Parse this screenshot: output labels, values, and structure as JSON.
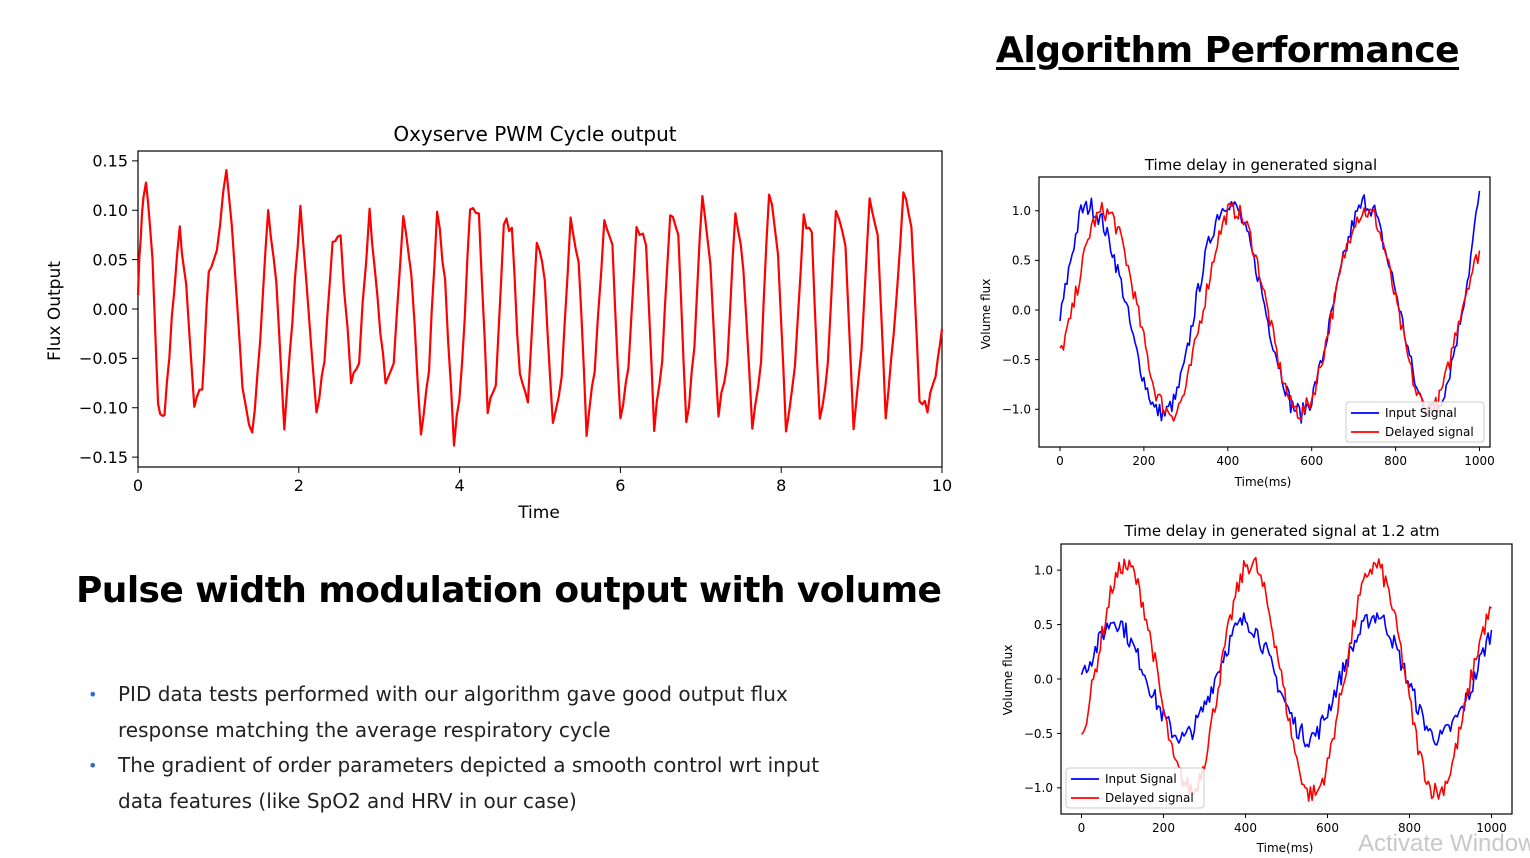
{
  "slide": {
    "section_title": "Algorithm Performance",
    "heading": "Pulse width modulation output with volume",
    "bullets": [
      "PID  data tests performed with our algorithm gave good output flux response matching the average respiratory cycle",
      "The gradient of order parameters depicted a smooth control wrt input data features (like SpO2 and HRV in our case)"
    ],
    "watermark": "Activate Windows"
  },
  "chart_data": [
    {
      "type": "line",
      "title": "Oxyserve PWM Cycle output",
      "xlabel": "Time",
      "ylabel": "Flux Output",
      "xlim": [
        0,
        10
      ],
      "ylim": [
        -0.16,
        0.16
      ],
      "xticks": [
        "0",
        "2",
        "4",
        "6",
        "8",
        "10"
      ],
      "yticks": [
        "0.15",
        "0.10",
        "0.05",
        "0.00",
        "−0.05",
        "−0.10",
        "−0.15"
      ],
      "grid": false,
      "series": [
        {
          "color": "#ff0000",
          "x": [
            0.0,
            0.05,
            0.1,
            0.18,
            0.25,
            0.33,
            0.42,
            0.52,
            0.6,
            0.7,
            0.8,
            0.88,
            0.98,
            1.1,
            1.2,
            1.3,
            1.42,
            1.52,
            1.62,
            1.72,
            1.82,
            1.92,
            2.02,
            2.12,
            2.22,
            2.32,
            2.42,
            2.52,
            2.65,
            2.75,
            2.88,
            2.98,
            3.08,
            3.18,
            3.3,
            3.4,
            3.52,
            3.62,
            3.72,
            3.82,
            3.93,
            4.03,
            4.13,
            4.24,
            4.35,
            4.45,
            4.55,
            4.65,
            4.75,
            4.85,
            4.96,
            5.06,
            5.16,
            5.27,
            5.38,
            5.48,
            5.58,
            5.68,
            5.8,
            5.9,
            6.0,
            6.1,
            6.2,
            6.32,
            6.42,
            6.52,
            6.62,
            6.72,
            6.82,
            6.92,
            7.02,
            7.12,
            7.22,
            7.33,
            7.43,
            7.53,
            7.64,
            7.75,
            7.85,
            7.96,
            8.06,
            8.17,
            8.28,
            8.38,
            8.48,
            8.58,
            8.68,
            8.8,
            8.9,
            9.0,
            9.1,
            9.2,
            9.3,
            9.4,
            9.52,
            9.62,
            9.72,
            9.82,
            9.92,
            10.0
          ],
          "y": [
            0.02,
            0.1,
            0.13,
            0.05,
            -0.1,
            -0.11,
            -0.01,
            0.08,
            0.02,
            -0.1,
            -0.08,
            0.04,
            0.06,
            0.14,
            0.05,
            -0.08,
            -0.13,
            -0.03,
            0.1,
            0.03,
            -0.12,
            -0.01,
            0.1,
            0.0,
            -0.11,
            -0.05,
            0.07,
            0.07,
            -0.07,
            -0.05,
            0.1,
            0.01,
            -0.08,
            -0.06,
            0.1,
            0.04,
            -0.13,
            -0.06,
            0.1,
            0.03,
            -0.14,
            -0.06,
            0.1,
            0.1,
            -0.1,
            -0.08,
            0.09,
            0.08,
            -0.07,
            -0.1,
            0.07,
            0.03,
            -0.12,
            -0.07,
            0.09,
            0.05,
            -0.13,
            -0.06,
            0.09,
            0.06,
            -0.11,
            -0.06,
            0.08,
            0.07,
            -0.12,
            -0.05,
            0.1,
            0.07,
            -0.12,
            -0.04,
            0.12,
            0.05,
            -0.11,
            -0.05,
            0.1,
            0.04,
            -0.12,
            -0.05,
            0.12,
            0.06,
            -0.12,
            -0.06,
            0.09,
            0.08,
            -0.11,
            -0.06,
            0.1,
            0.06,
            -0.12,
            -0.04,
            0.11,
            0.07,
            -0.11,
            -0.03,
            0.12,
            0.08,
            -0.09,
            -0.1,
            -0.07,
            -0.02
          ]
        }
      ]
    },
    {
      "type": "line",
      "title": "Time delay in generated signal",
      "xlabel": "Time(ms)",
      "ylabel": "Volume flux",
      "xlim": [
        -50,
        1025
      ],
      "ylim": [
        -1.38,
        1.34
      ],
      "xticks": [
        "0",
        "200",
        "400",
        "600",
        "800",
        "1000"
      ],
      "yticks": [
        "1.0",
        "0.5",
        "0.0",
        "−0.5",
        "−1.0"
      ],
      "legend": "bottom-right",
      "grid": false,
      "series": [
        {
          "name": "Input Signal",
          "color": "#0000ff",
          "x": [
            0,
            25,
            50,
            75,
            100,
            125,
            150,
            175,
            200,
            225,
            250,
            275,
            300,
            325,
            350,
            375,
            400,
            425,
            450,
            475,
            500,
            525,
            550,
            575,
            600,
            625,
            650,
            675,
            700,
            725,
            750,
            775,
            800,
            825,
            850,
            875,
            900,
            925,
            950,
            975,
            1000
          ],
          "y": [
            -0.1,
            0.5,
            1.0,
            1.05,
            0.9,
            0.6,
            0.2,
            -0.3,
            -0.7,
            -1.0,
            -1.05,
            -0.9,
            -0.5,
            0.1,
            0.6,
            0.95,
            1.1,
            1.0,
            0.7,
            0.3,
            -0.2,
            -0.6,
            -0.95,
            -1.05,
            -0.9,
            -0.5,
            0.0,
            0.5,
            0.9,
            1.1,
            1.0,
            0.6,
            0.2,
            -0.3,
            -0.8,
            -1.0,
            -1.0,
            -0.7,
            -0.2,
            0.4,
            1.2
          ]
        },
        {
          "name": "Delayed signal",
          "color": "#ff0000",
          "x": [
            0,
            25,
            50,
            75,
            100,
            125,
            150,
            175,
            200,
            225,
            250,
            275,
            300,
            325,
            350,
            375,
            400,
            425,
            450,
            475,
            500,
            525,
            550,
            575,
            600,
            625,
            650,
            675,
            700,
            725,
            750,
            775,
            800,
            825,
            850,
            875,
            900,
            925,
            950,
            975,
            1000
          ],
          "y": [
            -0.45,
            -0.1,
            0.4,
            0.85,
            1.0,
            0.95,
            0.65,
            0.2,
            -0.3,
            -0.8,
            -1.0,
            -1.05,
            -0.8,
            -0.3,
            0.2,
            0.7,
            1.0,
            1.0,
            0.8,
            0.4,
            -0.1,
            -0.6,
            -0.95,
            -1.05,
            -0.9,
            -0.5,
            0.0,
            0.5,
            0.9,
            1.0,
            0.95,
            0.6,
            0.1,
            -0.4,
            -0.85,
            -1.0,
            -0.95,
            -0.6,
            -0.1,
            0.3,
            0.6
          ]
        }
      ]
    },
    {
      "type": "line",
      "title": "Time delay in generated signal at 1.2 atm",
      "xlabel": "Time(ms)",
      "ylabel": "Volume flux",
      "xlim": [
        -50,
        1050
      ],
      "ylim": [
        -1.24,
        1.24
      ],
      "xticks": [
        "0",
        "200",
        "400",
        "600",
        "800",
        "1000"
      ],
      "yticks": [
        "1.0",
        "0.5",
        "0.0",
        "−0.5",
        "−1.0"
      ],
      "legend": "bottom-left",
      "grid": false,
      "series": [
        {
          "name": "Input Signal",
          "color": "#0000ff",
          "x": [
            0,
            25,
            50,
            75,
            100,
            125,
            150,
            175,
            200,
            225,
            250,
            275,
            300,
            325,
            350,
            375,
            400,
            425,
            450,
            475,
            500,
            525,
            550,
            575,
            600,
            625,
            650,
            675,
            700,
            725,
            750,
            775,
            800,
            825,
            850,
            875,
            900,
            925,
            950,
            975,
            1000
          ],
          "y": [
            0.05,
            0.2,
            0.4,
            0.55,
            0.5,
            0.3,
            0.1,
            -0.15,
            -0.35,
            -0.5,
            -0.55,
            -0.45,
            -0.25,
            0.0,
            0.25,
            0.45,
            0.55,
            0.45,
            0.25,
            0.0,
            -0.25,
            -0.45,
            -0.55,
            -0.5,
            -0.3,
            -0.05,
            0.2,
            0.4,
            0.55,
            0.6,
            0.45,
            0.2,
            -0.05,
            -0.3,
            -0.5,
            -0.55,
            -0.45,
            -0.3,
            -0.1,
            0.2,
            0.45
          ]
        },
        {
          "name": "Delayed signal",
          "color": "#ff0000",
          "x": [
            0,
            25,
            50,
            75,
            100,
            125,
            150,
            175,
            200,
            225,
            250,
            275,
            300,
            325,
            350,
            375,
            400,
            425,
            450,
            475,
            500,
            525,
            550,
            575,
            600,
            625,
            650,
            675,
            700,
            725,
            750,
            775,
            800,
            825,
            850,
            875,
            900,
            925,
            950,
            975,
            1000
          ],
          "y": [
            -0.55,
            -0.1,
            0.4,
            0.85,
            1.05,
            1.0,
            0.7,
            0.25,
            -0.3,
            -0.75,
            -0.95,
            -1.05,
            -0.75,
            -0.25,
            0.3,
            0.75,
            1.05,
            1.05,
            0.75,
            0.3,
            -0.25,
            -0.75,
            -1.05,
            -1.05,
            -0.8,
            -0.3,
            0.2,
            0.7,
            1.0,
            1.05,
            0.8,
            0.35,
            -0.2,
            -0.7,
            -1.0,
            -1.05,
            -0.85,
            -0.45,
            0.0,
            0.4,
            0.65
          ]
        }
      ]
    }
  ]
}
